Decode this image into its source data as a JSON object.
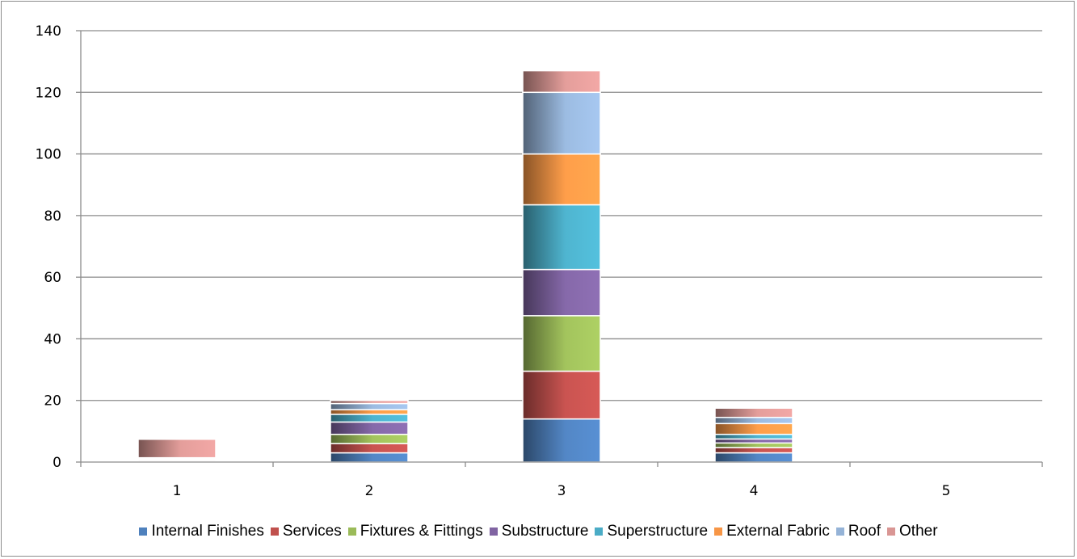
{
  "chart_data": {
    "type": "bar",
    "stacked": true,
    "categories": [
      "1",
      "2",
      "3",
      "4",
      "5"
    ],
    "ylim": [
      0,
      140
    ],
    "yticks": [
      "0",
      "20",
      "40",
      "60",
      "80",
      "100",
      "120",
      "140"
    ],
    "grid": true,
    "legend_position": "bottom",
    "series": [
      {
        "name": "Internal Finishes",
        "color": "#4F81BD",
        "values": [
          0.3,
          3,
          14,
          3,
          0
        ]
      },
      {
        "name": "Services",
        "color": "#C0504D",
        "values": [
          0.4,
          3,
          15.5,
          1.7,
          0
        ]
      },
      {
        "name": "Fixtures & Fittings",
        "color": "#9BBB59",
        "values": [
          0.2,
          3,
          18,
          1.5,
          0
        ]
      },
      {
        "name": "Substructure",
        "color": "#8064A2",
        "values": [
          0.2,
          4,
          15,
          1.3,
          0
        ]
      },
      {
        "name": "Superstructure",
        "color": "#4BACC6",
        "values": [
          0.1,
          2.5,
          21,
          1.5,
          0
        ]
      },
      {
        "name": "External Fabric",
        "color": "#F79646",
        "values": [
          0.1,
          1.5,
          16.5,
          3.5,
          0
        ]
      },
      {
        "name": "Roof",
        "color": "#95B3D7",
        "values": [
          0.1,
          2,
          20,
          2,
          0
        ]
      },
      {
        "name": "Other",
        "color": "#D99694",
        "values": [
          6,
          1,
          7,
          3,
          0
        ]
      }
    ]
  }
}
